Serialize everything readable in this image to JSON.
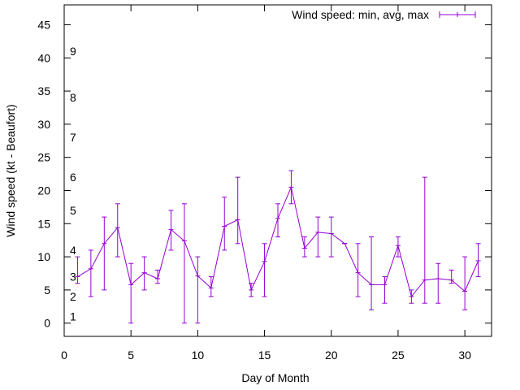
{
  "chart_data": {
    "type": "line-errorbar",
    "title": "",
    "xlabel": "Day of Month",
    "ylabel": "Wind speed (kt - Beaufort)",
    "xlim": [
      0,
      32
    ],
    "ylim": [
      -2,
      48
    ],
    "xticks": [
      0,
      5,
      10,
      15,
      20,
      25,
      30
    ],
    "yticks": [
      0,
      5,
      10,
      15,
      20,
      25,
      30,
      35,
      40,
      45
    ],
    "beaufort_labels": [
      {
        "label": "1",
        "y": 1
      },
      {
        "label": "2",
        "y": 4
      },
      {
        "label": "3",
        "y": 7
      },
      {
        "label": "4",
        "y": 11
      },
      {
        "label": "5",
        "y": 17
      },
      {
        "label": "6",
        "y": 22
      },
      {
        "label": "7",
        "y": 28
      },
      {
        "label": "8",
        "y": 34
      },
      {
        "label": "9",
        "y": 41
      }
    ],
    "legend": {
      "label": "Wind speed: min, avg, max",
      "position": "top-right"
    },
    "series": [
      {
        "name": "Wind speed: min, avg, max",
        "color": "#9400d3",
        "x": [
          1,
          2,
          3,
          4,
          5,
          6,
          7,
          8,
          9,
          10,
          11,
          12,
          13,
          14,
          15,
          16,
          17,
          18,
          19,
          20,
          21,
          22,
          23,
          24,
          25,
          26,
          27,
          28,
          29,
          30,
          31
        ],
        "avg": [
          7,
          8.2,
          12,
          14.4,
          5.8,
          7.6,
          6.7,
          14.1,
          12.4,
          7.1,
          5.3,
          14.6,
          15.6,
          5,
          9.3,
          15.8,
          20.5,
          11.3,
          13.7,
          13.5,
          12,
          7.6,
          5.8,
          5.8,
          11.7,
          4,
          6.5,
          6.7,
          6.5,
          4.8,
          9.4
        ],
        "min": [
          6,
          4,
          5,
          10,
          0,
          5,
          6,
          11,
          0,
          0,
          4,
          11,
          12,
          4,
          4,
          13,
          18,
          10,
          10,
          10,
          12,
          4,
          2,
          3,
          10,
          3,
          3,
          3,
          6,
          2,
          7
        ],
        "max": [
          10,
          11,
          16,
          18,
          9,
          10,
          8,
          17,
          18,
          10,
          7,
          19,
          22,
          6,
          12,
          18,
          23,
          13,
          16,
          16,
          12,
          12,
          13,
          7,
          13,
          5,
          22,
          9,
          8,
          10,
          12
        ]
      }
    ]
  }
}
